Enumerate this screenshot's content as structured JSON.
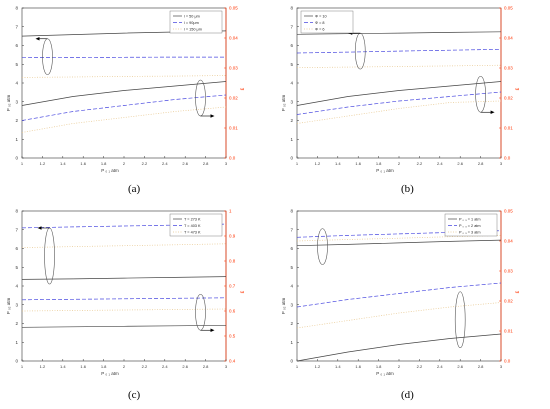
{
  "colors": {
    "left_axis": "#333333",
    "right_axis": "#ff3300",
    "series": [
      "#444444",
      "#4a4ae0",
      "#e8c890"
    ],
    "ellipse": "#555555"
  },
  "panel_captions": [
    "(a)",
    "(b)",
    "(c)",
    "(d)"
  ],
  "chart_data": [
    {
      "type": "line",
      "caption": "(a)",
      "xlabel": "P ₀ ₁  atm",
      "ylabel_left": "P ₀₂  atm",
      "ylabel_right": "ε",
      "xlim": [
        1,
        3
      ],
      "ylim_left": [
        0,
        8
      ],
      "ylim_right": [
        0.0,
        0.05
      ],
      "xticks": [
        "1",
        "1.2",
        "1.4",
        "1.6",
        "1.8",
        "2",
        "2.2",
        "2.4",
        "2.6",
        "2.8",
        "3"
      ],
      "yticks_left": [
        "0",
        "1",
        "2",
        "3",
        "4",
        "5",
        "6",
        "7",
        "8"
      ],
      "yticks_right": [
        "0.0",
        "0.01",
        "0.02",
        "0.03",
        "0.04",
        "0.05"
      ],
      "legend": [
        "l = 50 μm",
        "l = 90μm",
        "l = 150 μm"
      ],
      "legend_position": "top-right",
      "x": [
        1,
        1.5,
        2,
        2.5,
        3
      ],
      "series": [
        {
          "name": "l = 50 μm",
          "axis": "left",
          "values": [
            6.5,
            6.58,
            6.66,
            6.72,
            6.78
          ]
        },
        {
          "name": "l = 90μm",
          "axis": "left",
          "values": [
            5.35,
            5.36,
            5.37,
            5.38,
            5.38
          ]
        },
        {
          "name": "l = 150 μm",
          "axis": "left",
          "values": [
            4.3,
            4.32,
            4.35,
            4.37,
            4.4
          ]
        },
        {
          "name": "l = 50 μm",
          "axis": "right",
          "values": [
            0.0175,
            0.0205,
            0.0225,
            0.024,
            0.0255
          ]
        },
        {
          "name": "l = 90μm",
          "axis": "right",
          "values": [
            0.0125,
            0.0155,
            0.0175,
            0.0195,
            0.021
          ]
        },
        {
          "name": "l = 150 μm",
          "axis": "right",
          "values": [
            0.0085,
            0.0115,
            0.0135,
            0.0155,
            0.017
          ]
        }
      ],
      "ellipses": [
        {
          "x": 1.25,
          "y": 5.4,
          "arrow": "left"
        },
        {
          "x": 2.75,
          "y": 3.2,
          "arrow": "right"
        }
      ]
    },
    {
      "type": "line",
      "caption": "(b)",
      "xlabel": "P ₀ ₁  atm",
      "ylabel_left": "P ₀₂  atm",
      "ylabel_right": "ε",
      "xlim": [
        1,
        3
      ],
      "ylim_left": [
        0,
        8
      ],
      "ylim_right": [
        0.0,
        0.05
      ],
      "xticks": [
        "1",
        "1.2",
        "1.4",
        "1.6",
        "1.8",
        "2",
        "2.2",
        "2.4",
        "2.6",
        "2.8",
        "3"
      ],
      "yticks_left": [
        "0",
        "1",
        "2",
        "3",
        "4",
        "5",
        "6",
        "7",
        "8"
      ],
      "yticks_right": [
        "0.0",
        "0.01",
        "0.02",
        "0.03",
        "0.04",
        "0.05"
      ],
      "legend": [
        "Φ = 10",
        "Φ = 8",
        "Φ = 6"
      ],
      "legend_position": "top-left",
      "x": [
        1,
        1.5,
        2,
        2.5,
        3
      ],
      "series": [
        {
          "name": "Φ = 10",
          "axis": "left",
          "values": [
            6.6,
            6.63,
            6.66,
            6.7,
            6.73
          ]
        },
        {
          "name": "Φ = 8",
          "axis": "left",
          "values": [
            5.6,
            5.65,
            5.7,
            5.75,
            5.8
          ]
        },
        {
          "name": "Φ = 6",
          "axis": "left",
          "values": [
            4.82,
            4.85,
            4.88,
            4.91,
            4.95
          ]
        },
        {
          "name": "Φ = 10",
          "axis": "right",
          "values": [
            0.0175,
            0.0205,
            0.0225,
            0.024,
            0.0255
          ]
        },
        {
          "name": "Φ = 8",
          "axis": "right",
          "values": [
            0.0145,
            0.017,
            0.019,
            0.0205,
            0.022
          ]
        },
        {
          "name": "Φ = 6",
          "axis": "right",
          "values": [
            0.0115,
            0.014,
            0.0165,
            0.0185,
            0.019
          ]
        }
      ],
      "ellipses": [
        {
          "x": 1.62,
          "y": 5.7,
          "arrow": "left"
        },
        {
          "x": 2.8,
          "y": 3.4,
          "arrow": "right"
        }
      ]
    },
    {
      "type": "line",
      "caption": "(c)",
      "xlabel": "P ₀ ₁  atm",
      "ylabel_left": "P ₀₂  atm",
      "ylabel_right": "ε",
      "xlim": [
        1,
        3
      ],
      "ylim_left": [
        0,
        8
      ],
      "ylim_right": [
        0.4,
        1.0
      ],
      "xticks": [
        "1",
        "1.2",
        "1.4",
        "1.6",
        "1.8",
        "2",
        "2.2",
        "2.4",
        "2.6",
        "2.8",
        "3"
      ],
      "yticks_left": [
        "0",
        "1",
        "2",
        "3",
        "4",
        "5",
        "6",
        "7",
        "8"
      ],
      "yticks_right": [
        "0.4",
        "0.5",
        "0.6",
        "0.7",
        "0.8",
        "0.9",
        "1"
      ],
      "legend": [
        "T = 273 K",
        "T = 403 K",
        "T = 473 K"
      ],
      "legend_position": "top-right",
      "x": [
        1,
        1.5,
        2,
        2.5,
        3
      ],
      "series": [
        {
          "name": "T = 273 K",
          "axis": "left",
          "values": [
            4.35,
            4.38,
            4.42,
            4.46,
            4.5
          ]
        },
        {
          "name": "T = 403 K",
          "axis": "left",
          "values": [
            7.1,
            7.15,
            7.2,
            7.25,
            7.3
          ]
        },
        {
          "name": "T = 473 K",
          "axis": "left",
          "values": [
            6.05,
            6.1,
            6.15,
            6.2,
            6.25
          ]
        },
        {
          "name": "T = 273 K",
          "axis": "right",
          "values": [
            0.535,
            0.537,
            0.539,
            0.541,
            0.543
          ]
        },
        {
          "name": "T = 403 K",
          "axis": "right",
          "values": [
            0.645,
            0.647,
            0.649,
            0.651,
            0.653
          ]
        },
        {
          "name": "T = 473 K",
          "axis": "right",
          "values": [
            0.6,
            0.602,
            0.604,
            0.606,
            0.608
          ]
        }
      ],
      "ellipses": [
        {
          "x": 1.27,
          "y": 5.6,
          "arrow": "left"
        },
        {
          "x": 2.75,
          "y": 2.6,
          "arrow": "right"
        }
      ]
    },
    {
      "type": "line",
      "caption": "(d)",
      "xlabel": "P ₀ ₁  atm",
      "ylabel_left": "P ₀₂  atm",
      "ylabel_right": "ε",
      "xlim": [
        1,
        3
      ],
      "ylim_left": [
        0,
        8
      ],
      "ylim_right": [
        0.0,
        0.05
      ],
      "xticks": [
        "1",
        "1.2",
        "1.4",
        "1.6",
        "1.8",
        "2",
        "2.2",
        "2.4",
        "2.6",
        "2.8",
        "3"
      ],
      "yticks_left": [
        "0",
        "1",
        "2",
        "3",
        "4",
        "5",
        "6",
        "7",
        "8"
      ],
      "yticks_right": [
        "0.0",
        "0.01",
        "0.02",
        "0.03",
        "0.04",
        "0.05"
      ],
      "legend": [
        "P ₀ ₃ = 1 atm",
        "P ₀ ₃ = 2 atm",
        "P ₀ ₃ = 3 atm"
      ],
      "legend_position": "top-right",
      "x": [
        1,
        1.5,
        2,
        2.5,
        3
      ],
      "series": [
        {
          "name": "P ₀ ₃ = 1 atm",
          "axis": "left",
          "values": [
            6.15,
            6.22,
            6.3,
            6.38,
            6.45
          ]
        },
        {
          "name": "P ₀ ₃ = 2 atm",
          "axis": "left",
          "values": [
            6.6,
            6.7,
            6.78,
            6.86,
            6.95
          ]
        },
        {
          "name": "P ₀ ₃ = 3 atm",
          "axis": "left",
          "values": [
            6.4,
            6.48,
            6.55,
            6.63,
            6.7
          ]
        },
        {
          "name": "P ₀ ₃ = 1 atm",
          "axis": "right",
          "values": [
            0.0,
            0.003,
            0.0055,
            0.0075,
            0.009
          ]
        },
        {
          "name": "P ₀ ₃ = 2 atm",
          "axis": "right",
          "values": [
            0.018,
            0.0205,
            0.0225,
            0.0245,
            0.026
          ]
        },
        {
          "name": "P ₀ ₃ = 3 atm",
          "axis": "right",
          "values": [
            0.011,
            0.0135,
            0.016,
            0.018,
            0.0195
          ]
        }
      ],
      "ellipses": [
        {
          "x": 1.25,
          "y": 6.1,
          "arrow": "none"
        },
        {
          "x": 2.6,
          "y": 2.2,
          "arrow": "none"
        }
      ]
    }
  ]
}
